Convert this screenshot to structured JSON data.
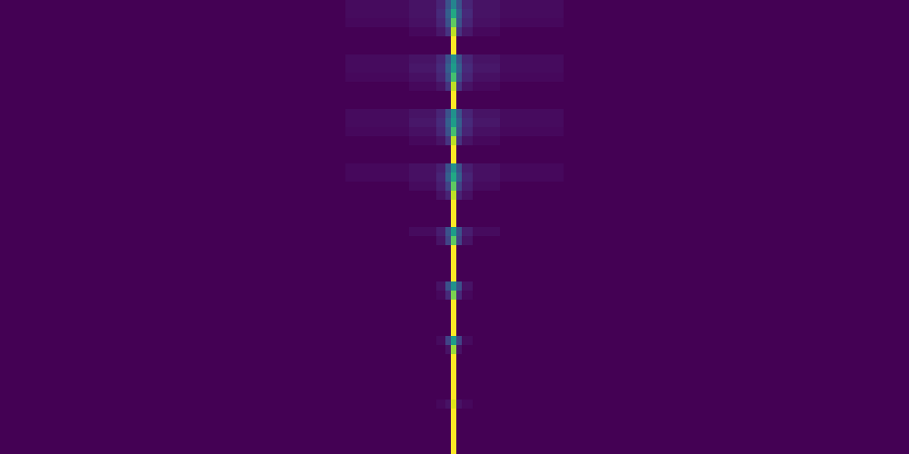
{
  "chart_data": {
    "type": "heatmap",
    "color": "viridis",
    "tick_labels": false,
    "xlim": [
      0,
      1000
    ],
    "ylim": [
      0,
      50
    ],
    "x_edges": [
      0,
      380,
      450,
      480,
      490,
      496,
      502,
      508,
      520,
      550,
      620,
      1000
    ],
    "color_range": [
      0,
      1
    ],
    "cells": [
      [
        0,
        0.03,
        0.05,
        0.1,
        0.25,
        0.45,
        0.25,
        0.1,
        0.05,
        0.03,
        0
      ],
      [
        0,
        0.03,
        0.05,
        0.12,
        0.3,
        0.6,
        0.3,
        0.12,
        0.05,
        0.03,
        0
      ],
      [
        0,
        0.02,
        0.04,
        0.1,
        0.25,
        0.75,
        0.25,
        0.1,
        0.04,
        0.02,
        0
      ],
      [
        0,
        0,
        0.02,
        0.06,
        0.15,
        0.9,
        0.15,
        0.06,
        0.02,
        0,
        0
      ],
      [
        0,
        0,
        0,
        0,
        0,
        1,
        0,
        0,
        0,
        0,
        0
      ],
      [
        0,
        0,
        0,
        0,
        0,
        1,
        0,
        0,
        0,
        0,
        0
      ],
      [
        0,
        0.03,
        0.05,
        0.1,
        0.25,
        0.5,
        0.25,
        0.1,
        0.05,
        0.03,
        0
      ],
      [
        0,
        0.03,
        0.06,
        0.12,
        0.3,
        0.55,
        0.3,
        0.12,
        0.06,
        0.03,
        0
      ],
      [
        0,
        0.02,
        0.04,
        0.1,
        0.25,
        0.7,
        0.25,
        0.1,
        0.04,
        0.02,
        0
      ],
      [
        0,
        0,
        0.02,
        0.05,
        0.15,
        0.9,
        0.15,
        0.05,
        0.02,
        0,
        0
      ],
      [
        0,
        0,
        0,
        0,
        0,
        1,
        0,
        0,
        0,
        0,
        0
      ],
      [
        0,
        0,
        0,
        0,
        0,
        1,
        0,
        0,
        0,
        0,
        0
      ],
      [
        0,
        0.03,
        0.05,
        0.1,
        0.25,
        0.5,
        0.25,
        0.1,
        0.05,
        0.03,
        0
      ],
      [
        0,
        0.03,
        0.06,
        0.12,
        0.3,
        0.55,
        0.3,
        0.12,
        0.06,
        0.03,
        0
      ],
      [
        0,
        0.02,
        0.04,
        0.1,
        0.25,
        0.7,
        0.25,
        0.1,
        0.04,
        0.02,
        0
      ],
      [
        0,
        0,
        0.02,
        0.05,
        0.15,
        0.9,
        0.15,
        0.05,
        0.02,
        0,
        0
      ],
      [
        0,
        0,
        0,
        0,
        0,
        1,
        0,
        0,
        0,
        0,
        0
      ],
      [
        0,
        0,
        0,
        0,
        0,
        1,
        0,
        0,
        0,
        0,
        0
      ],
      [
        0,
        0.02,
        0.04,
        0.08,
        0.25,
        0.5,
        0.25,
        0.08,
        0.04,
        0.02,
        0
      ],
      [
        0,
        0.02,
        0.04,
        0.1,
        0.3,
        0.6,
        0.3,
        0.1,
        0.04,
        0.02,
        0
      ],
      [
        0,
        0,
        0.03,
        0.08,
        0.2,
        0.75,
        0.2,
        0.08,
        0.03,
        0,
        0
      ],
      [
        0,
        0,
        0,
        0.04,
        0.1,
        0.9,
        0.1,
        0.04,
        0,
        0,
        0
      ],
      [
        0,
        0,
        0,
        0,
        0,
        1,
        0,
        0,
        0,
        0,
        0
      ],
      [
        0,
        0,
        0,
        0,
        0,
        1,
        0,
        0,
        0,
        0,
        0
      ],
      [
        0,
        0,
        0,
        0,
        0,
        1,
        0,
        0,
        0,
        0,
        0
      ],
      [
        0,
        0,
        0.03,
        0.08,
        0.25,
        0.55,
        0.25,
        0.08,
        0.03,
        0,
        0
      ],
      [
        0,
        0,
        0,
        0.05,
        0.2,
        0.75,
        0.2,
        0.05,
        0,
        0,
        0
      ],
      [
        0,
        0,
        0,
        0,
        0,
        1,
        0,
        0,
        0,
        0,
        0
      ],
      [
        0,
        0,
        0,
        0,
        0,
        1,
        0,
        0,
        0,
        0,
        0
      ],
      [
        0,
        0,
        0,
        0,
        0,
        1,
        0,
        0,
        0,
        0,
        0
      ],
      [
        0,
        0,
        0,
        0,
        0,
        1,
        0,
        0,
        0,
        0,
        0
      ],
      [
        0,
        0,
        0,
        0.05,
        0.25,
        0.5,
        0.25,
        0.05,
        0,
        0,
        0
      ],
      [
        0,
        0,
        0,
        0.02,
        0.12,
        0.8,
        0.12,
        0.02,
        0,
        0,
        0
      ],
      [
        0,
        0,
        0,
        0,
        0,
        1,
        0,
        0,
        0,
        0,
        0
      ],
      [
        0,
        0,
        0,
        0,
        0,
        1,
        0,
        0,
        0,
        0,
        0
      ],
      [
        0,
        0,
        0,
        0,
        0,
        1,
        0,
        0,
        0,
        0,
        0
      ],
      [
        0,
        0,
        0,
        0,
        0,
        1,
        0,
        0,
        0,
        0,
        0
      ],
      [
        0,
        0,
        0,
        0.03,
        0.2,
        0.55,
        0.2,
        0.03,
        0,
        0,
        0
      ],
      [
        0,
        0,
        0,
        0,
        0.05,
        0.85,
        0.05,
        0,
        0,
        0,
        0
      ],
      [
        0,
        0,
        0,
        0,
        0,
        1,
        0,
        0,
        0,
        0,
        0
      ],
      [
        0,
        0,
        0,
        0,
        0,
        1,
        0,
        0,
        0,
        0,
        0
      ],
      [
        0,
        0,
        0,
        0,
        0,
        1,
        0,
        0,
        0,
        0,
        0
      ],
      [
        0,
        0,
        0,
        0,
        0,
        1,
        0,
        0,
        0,
        0,
        0
      ],
      [
        0,
        0,
        0,
        0,
        0,
        1,
        0,
        0,
        0,
        0,
        0
      ],
      [
        0,
        0,
        0,
        0.02,
        0.05,
        0.95,
        0.05,
        0.02,
        0,
        0,
        0
      ],
      [
        0,
        0,
        0,
        0,
        0,
        1,
        0,
        0,
        0,
        0,
        0
      ],
      [
        0,
        0,
        0,
        0,
        0,
        1,
        0,
        0,
        0,
        0,
        0
      ],
      [
        0,
        0,
        0,
        0,
        0,
        1,
        0,
        0,
        0,
        0,
        0
      ],
      [
        0,
        0,
        0,
        0,
        0,
        1,
        0,
        0,
        0,
        0,
        0
      ],
      [
        0,
        0,
        0,
        0,
        0,
        1,
        0,
        0,
        0,
        0,
        0
      ]
    ]
  }
}
